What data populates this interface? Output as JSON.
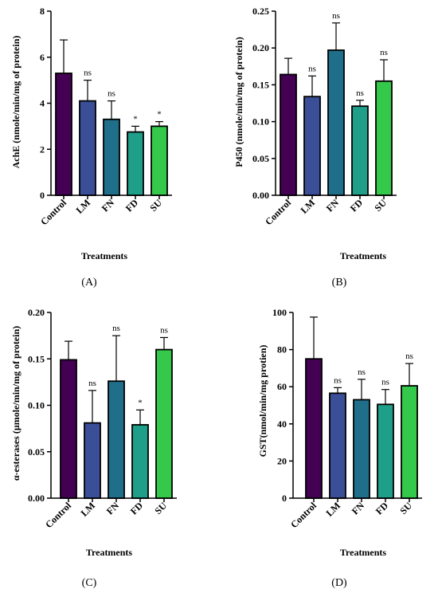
{
  "chart_data": [
    {
      "type": "bar",
      "panel_label": "(A)",
      "ylabel": "AchE (nmole/min/mg of protein)",
      "xlabel": "Treatments",
      "categories": [
        "Control",
        "LM",
        "FN",
        "FD",
        "SU"
      ],
      "values": [
        5.3,
        4.1,
        3.3,
        2.75,
        3.0
      ],
      "errors": [
        1.45,
        0.9,
        0.8,
        0.25,
        0.2
      ],
      "annotations": [
        "",
        "ns",
        "ns",
        "*",
        "*"
      ],
      "ylim": [
        0,
        8
      ],
      "yticks": [
        "0",
        "2",
        "4",
        "6",
        "8"
      ],
      "colors": [
        "#440154",
        "#3b4e98",
        "#1f6f8b",
        "#1f9e89",
        "#35c94c"
      ]
    },
    {
      "type": "bar",
      "panel_label": "(B)",
      "ylabel": "P450 (nmole/min/mg of protein)",
      "xlabel": "Treatments",
      "categories": [
        "Control",
        "LM",
        "FN",
        "FD",
        "SU"
      ],
      "values": [
        0.164,
        0.134,
        0.197,
        0.121,
        0.155
      ],
      "errors": [
        0.022,
        0.028,
        0.037,
        0.008,
        0.029
      ],
      "annotations": [
        "",
        "ns",
        "ns",
        "ns",
        "ns"
      ],
      "ylim": [
        0,
        0.25
      ],
      "yticks": [
        "0.00",
        "0.05",
        "0.10",
        "0.15",
        "0.20",
        "0.25"
      ],
      "colors": [
        "#440154",
        "#3b4e98",
        "#1f6f8b",
        "#1f9e89",
        "#35c94c"
      ]
    },
    {
      "type": "bar",
      "panel_label": "(C)",
      "ylabel": "α-esterases (µmole/min/mg of protein)",
      "xlabel": "Treatments",
      "categories": [
        "Control",
        "LM",
        "FN",
        "FD",
        "SU"
      ],
      "values": [
        0.149,
        0.081,
        0.126,
        0.079,
        0.16
      ],
      "errors": [
        0.02,
        0.035,
        0.049,
        0.016,
        0.013
      ],
      "annotations": [
        "",
        "ns",
        "ns",
        "*",
        "ns"
      ],
      "ylim": [
        0,
        0.2
      ],
      "yticks": [
        "0.00",
        "0.05",
        "0.10",
        "0.15",
        "0.20"
      ],
      "colors": [
        "#440154",
        "#3b4e98",
        "#1f6f8b",
        "#1f9e89",
        "#35c94c"
      ]
    },
    {
      "type": "bar",
      "panel_label": "(D)",
      "ylabel": "GST(nmol/min/mg protien)",
      "xlabel": "Treatments",
      "categories": [
        "Control",
        "LM",
        "FN",
        "FD",
        "SU"
      ],
      "values": [
        75,
        56.5,
        53,
        50.5,
        60.5
      ],
      "errors": [
        22.5,
        3,
        11,
        8,
        12
      ],
      "annotations": [
        "",
        "ns",
        "ns",
        "ns",
        "ns"
      ],
      "ylim": [
        0,
        100
      ],
      "yticks": [
        "0",
        "20",
        "40",
        "60",
        "80",
        "100"
      ],
      "colors": [
        "#440154",
        "#3b4e98",
        "#1f6f8b",
        "#1f9e89",
        "#35c94c"
      ]
    }
  ]
}
